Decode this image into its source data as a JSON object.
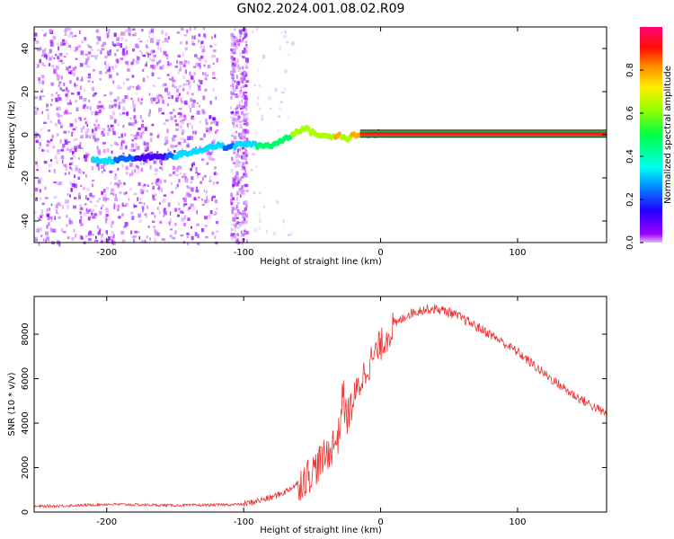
{
  "title": "GN02.2024.001.08.02.R09",
  "chart_data": [
    {
      "type": "heatmap",
      "title": "GN02.2024.001.08.02.R09",
      "xlabel": "Height of straight line (km)",
      "ylabel": "Frequency (Hz)",
      "xlim": [
        -253,
        165
      ],
      "ylim": [
        -50,
        50
      ],
      "xticks": [
        -200,
        -100,
        0,
        100
      ],
      "yticks": [
        -40,
        -20,
        0,
        20,
        40
      ],
      "colorbar": {
        "label": "Normalized spectral amplitude",
        "range": [
          0,
          1
        ],
        "ticks": [
          0.0,
          0.2,
          0.4,
          0.6,
          0.8
        ],
        "colormap": "hsv"
      },
      "ridge": {
        "x": [
          -200,
          -180,
          -160,
          -150,
          -120,
          -110,
          -100,
          -90,
          -80,
          -70,
          -60,
          -55,
          -50,
          -40,
          -30,
          -25,
          -20,
          -10,
          0,
          50,
          100,
          165
        ],
        "frequency": [
          -12,
          -11,
          -10,
          -10,
          -5,
          -6,
          -4,
          -5,
          -5,
          -2,
          2,
          3,
          1,
          -1,
          0,
          -2,
          0,
          0.5,
          0.5,
          0.5,
          0.5,
          0.5
        ],
        "amplitude": [
          0.4,
          0.2,
          0.15,
          0.35,
          0.4,
          0.3,
          0.45,
          0.5,
          0.55,
          0.6,
          0.7,
          0.75,
          0.7,
          0.75,
          0.8,
          0.7,
          0.85,
          0.95,
          1.0,
          1.0,
          1.0,
          1.0
        ]
      }
    },
    {
      "type": "line",
      "xlabel": "Height of straight line (km)",
      "ylabel": "SNR (10 * v/v)",
      "xlim": [
        -253,
        165
      ],
      "ylim": [
        0,
        9700
      ],
      "xticks": [
        -200,
        -100,
        0,
        100
      ],
      "yticks": [
        0,
        2000,
        4000,
        6000,
        8000
      ],
      "color": "#ee3333",
      "series": [
        {
          "x": [
            -253,
            -220,
            -200,
            -180,
            -150,
            -120,
            -100,
            -90,
            -80,
            -70,
            -60,
            -50,
            -45,
            -40,
            -35,
            -30,
            -28,
            -25,
            -20,
            -15,
            -10,
            -5,
            0,
            10,
            20,
            30,
            40,
            50,
            60,
            80,
            100,
            120,
            140,
            165
          ],
          "values": [
            250,
            300,
            350,
            330,
            300,
            320,
            350,
            500,
            650,
            900,
            1300,
            1800,
            2200,
            2500,
            3000,
            3500,
            5500,
            4200,
            5000,
            5800,
            6500,
            7000,
            7500,
            8400,
            8900,
            9100,
            9150,
            9000,
            8700,
            8000,
            7200,
            6200,
            5300,
            4400
          ]
        }
      ]
    }
  ]
}
